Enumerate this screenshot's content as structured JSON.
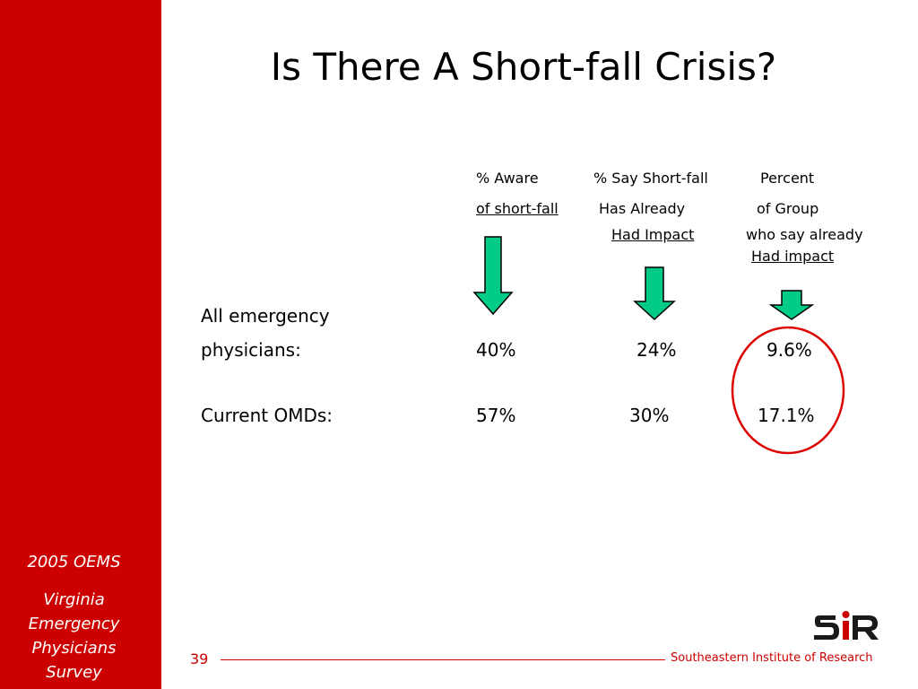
{
  "sidebar": {
    "survey_year": "2005 OEMS",
    "survey_line1": "Virginia",
    "survey_line2": "Emergency",
    "survey_line3": "Physicians",
    "survey_line4": "Survey"
  },
  "title": "Is There A Short-fall Crisis?",
  "columns": [
    {
      "line1": "% Aware",
      "line2": "of short-fall"
    },
    {
      "line1": "% Say Short-fall",
      "line2": "Has Already",
      "line3": "Had Impact"
    },
    {
      "line1": "Percent",
      "line2": "of Group",
      "line3": "who say already",
      "line4": "Had impact"
    }
  ],
  "rows": [
    {
      "label_line1": "All emergency",
      "label_line2": "physicians:",
      "values": [
        "40%",
        "24%",
        "9.6%"
      ]
    },
    {
      "label": "Current OMDs:",
      "values": [
        "57%",
        "30%",
        "17.1%"
      ]
    }
  ],
  "footer": {
    "page_number": "39",
    "organization": "Southeastern Institute of Research",
    "logo_text": "SIR"
  },
  "colors": {
    "brand_red": "#cc0000",
    "arrow_fill": "#00cc88",
    "highlight_circle": "#dd0000"
  },
  "icons": [
    "down-arrow-icon",
    "highlight-circle",
    "sir-logo"
  ]
}
